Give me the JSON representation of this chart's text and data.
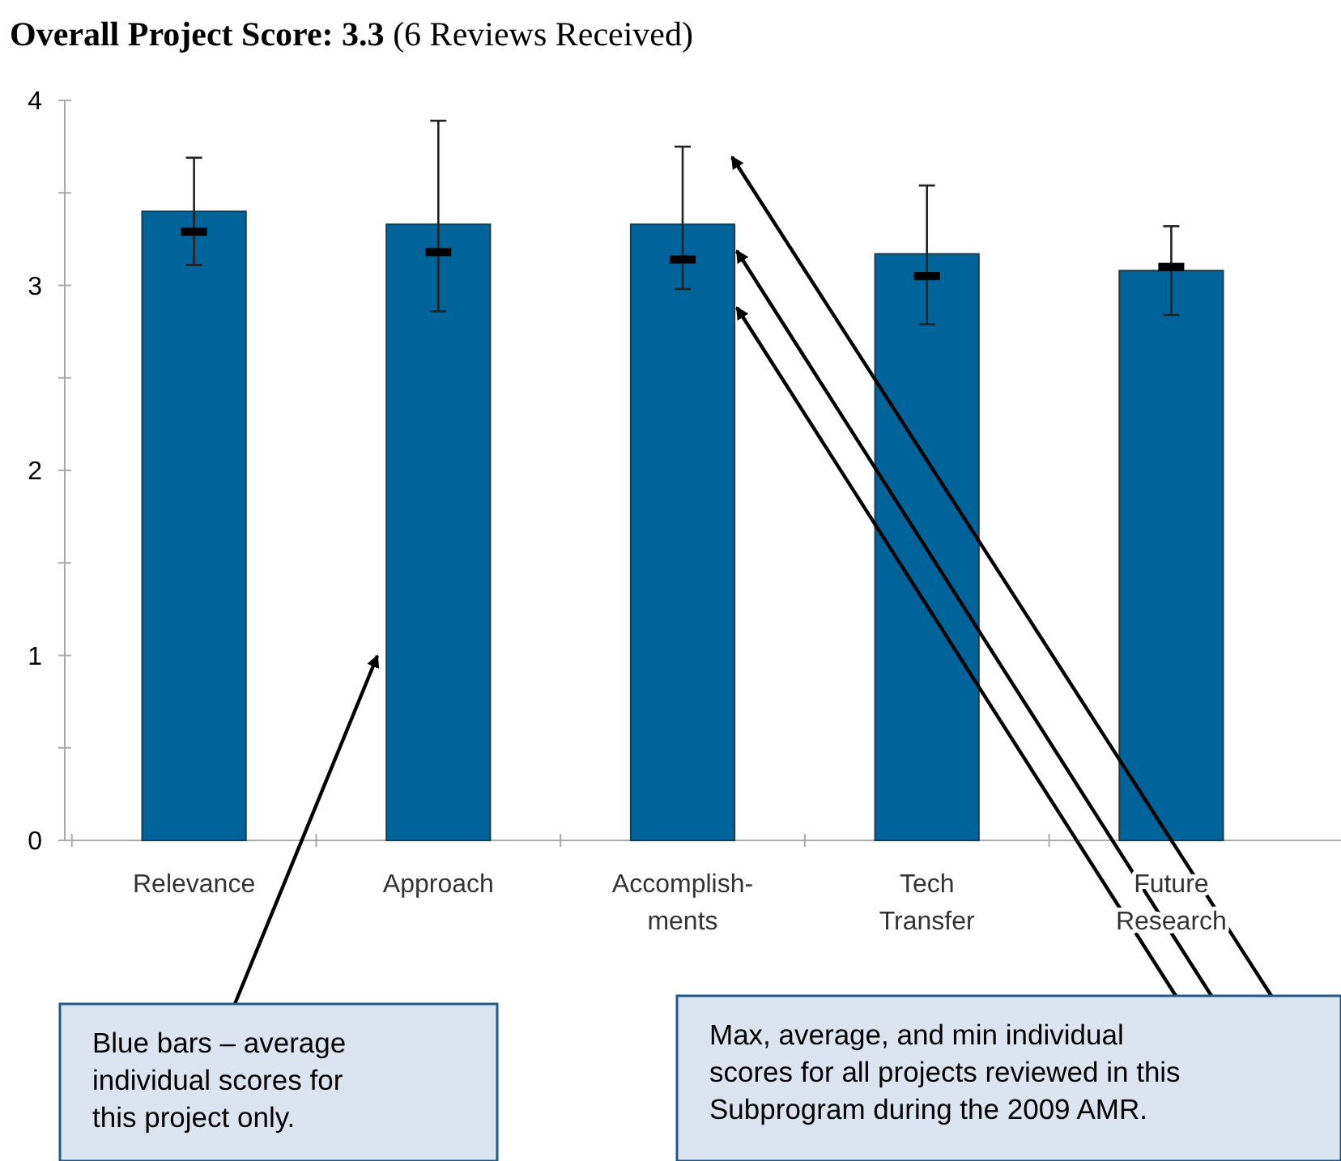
{
  "chart_data": {
    "type": "bar",
    "title": "Overall Project Score: 3.3",
    "subtitle": "(6 Reviews Received)",
    "categories": [
      "Relevance",
      "Approach",
      "Accomplish-\nments",
      "Tech\nTransfer",
      "Future\nResearch"
    ],
    "series": [
      {
        "color": "#00649a",
        "values": [
          3.4,
          3.33,
          3.33,
          3.17,
          3.08
        ],
        "errors": [
          [
            3.11,
            3.69
          ],
          [
            2.86,
            3.89
          ],
          [
            2.98,
            3.75
          ],
          [
            2.79,
            3.54
          ],
          [
            2.84,
            3.32
          ]
        ]
      },
      {
        "type": "scatter",
        "color": "#000000",
        "x": [
          "Relevance",
          "Approach",
          "Accomplish-\nments",
          "Tech\nTransfer",
          "Future\nResearch"
        ],
        "values": [
          3.29,
          3.18,
          3.14,
          3.05,
          3.1
        ]
      }
    ],
    "ylim": [
      0,
      4
    ],
    "yticks": [
      0,
      {
        "value": 0.5,
        "label": null
      },
      1,
      {
        "value": 1.5,
        "label": null
      },
      2,
      {
        "value": 2.5,
        "label": null
      },
      3,
      {
        "value": 3.5,
        "label": null
      },
      4
    ],
    "grid": false,
    "annotations": [
      "Blue bars – average\nindividual scores for\nthis project only.",
      "Max, average, and min individual\nscores for all projects reviewed in this\nSubprogram during the 2009 AMR."
    ]
  }
}
